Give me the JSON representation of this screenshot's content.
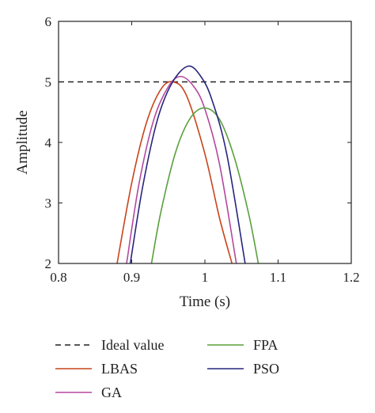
{
  "chart_data": {
    "type": "line",
    "title": "",
    "xlabel": "Time (s)",
    "ylabel": "Amplitude",
    "xlim": [
      0.8,
      1.2
    ],
    "ylim": [
      2,
      6
    ],
    "xticks": [
      "0.8",
      "0.9",
      "1",
      "1.1",
      "1.2"
    ],
    "yticks": [
      "2",
      "3",
      "4",
      "5",
      "6"
    ],
    "grid": false,
    "legend_position": "below plot, two columns",
    "reference_line": {
      "name": "Ideal value",
      "y": 5,
      "style": "dashed",
      "color": "#222222"
    },
    "series": [
      {
        "name": "LBAS",
        "color": "#c8441b",
        "x": [
          0.88,
          0.9,
          0.92,
          0.94,
          0.957,
          0.975,
          1.0,
          1.02,
          1.037
        ],
        "y": [
          2.0,
          3.33,
          4.32,
          4.88,
          5.0,
          4.77,
          3.81,
          2.75,
          2.0
        ]
      },
      {
        "name": "GA",
        "color": "#b5479e",
        "x": [
          0.893,
          0.91,
          0.93,
          0.95,
          0.967,
          0.985,
          1.0,
          1.02,
          1.043
        ],
        "y": [
          2.0,
          3.32,
          4.37,
          4.92,
          5.09,
          4.92,
          4.55,
          3.64,
          2.0
        ]
      },
      {
        "name": "FPA",
        "color": "#5aa03c",
        "x": [
          0.927,
          0.94,
          0.96,
          0.98,
          1.0,
          1.02,
          1.04,
          1.06,
          1.073
        ],
        "y": [
          2.0,
          2.86,
          3.84,
          4.4,
          4.57,
          4.38,
          3.76,
          2.81,
          2.0
        ]
      },
      {
        "name": "PSO",
        "color": "#27257d",
        "x": [
          0.898,
          0.915,
          0.935,
          0.955,
          0.977,
          0.995,
          1.01,
          1.03,
          1.055
        ],
        "y": [
          2.0,
          3.27,
          4.37,
          4.98,
          5.26,
          5.08,
          4.69,
          3.8,
          2.0
        ]
      }
    ]
  }
}
